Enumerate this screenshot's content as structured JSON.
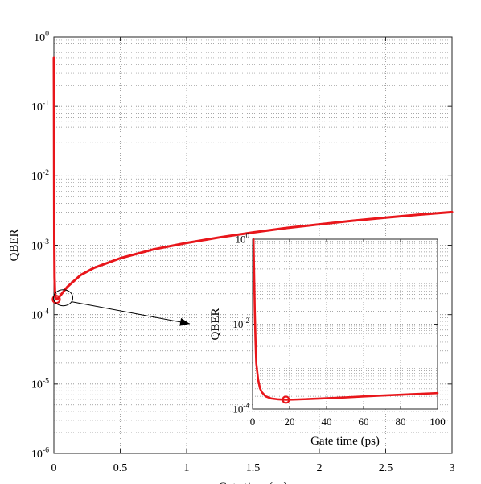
{
  "chart_data": [
    {
      "type": "line",
      "title": "",
      "xlabel": "Gate time (ns)",
      "ylabel": "QBER",
      "xlim": [
        0,
        3
      ],
      "ylim": [
        1e-06,
        1
      ],
      "yscale": "log",
      "grid": true,
      "x_ticks": [
        0,
        0.5,
        1,
        1.5,
        2,
        2.5,
        3
      ],
      "x_tick_labels": [
        "0",
        "0.5",
        "1",
        "1.5",
        "2",
        "2.5",
        "3"
      ],
      "y_ticks": [
        1e-06,
        1e-05,
        0.0001,
        0.001,
        0.01,
        0.1,
        1
      ],
      "y_tick_bases": [
        "10",
        "10",
        "10",
        "10",
        "10",
        "10",
        "10"
      ],
      "y_tick_exponents": [
        "-6",
        "-5",
        "-4",
        "-3",
        "-2",
        "-1",
        "0"
      ],
      "series": [
        {
          "color": "#e8161b",
          "x": [
            0.0,
            0.001,
            0.002,
            0.003,
            0.005,
            0.008,
            0.012,
            0.018,
            0.025,
            0.05,
            0.1,
            0.2,
            0.3,
            0.5,
            0.75,
            1.0,
            1.25,
            1.5,
            1.75,
            2.0,
            2.25,
            2.5,
            2.75,
            3.0
          ],
          "y": [
            0.5,
            0.12,
            0.01,
            0.0012,
            0.00035,
            0.00022,
            0.00018,
            0.000168,
            0.000166,
            0.00019,
            0.00025,
            0.00037,
            0.00047,
            0.00065,
            0.00087,
            0.00108,
            0.0013,
            0.00153,
            0.00177,
            0.002,
            0.00225,
            0.0025,
            0.00275,
            0.003
          ]
        }
      ],
      "marker": {
        "x": 0.018,
        "y": 0.000166,
        "color": "#e8161b"
      },
      "annotation": {
        "type": "ellipse-with-arrow",
        "points_to": "inset"
      }
    },
    {
      "type": "line",
      "role": "inset",
      "title": "",
      "xlabel": "Gate time (ps)",
      "ylabel": "QBER",
      "xlim": [
        0,
        100
      ],
      "ylim": [
        0.0001,
        1
      ],
      "yscale": "log",
      "grid": true,
      "x_ticks": [
        0,
        20,
        40,
        60,
        80,
        100
      ],
      "x_tick_labels": [
        "0",
        "20",
        "40",
        "60",
        "80",
        "100"
      ],
      "y_ticks": [
        0.0001,
        0.01,
        1
      ],
      "y_tick_bases": [
        "10",
        "10",
        "10"
      ],
      "y_tick_exponents": [
        "-4",
        "-2",
        "0"
      ],
      "series": [
        {
          "color": "#e8161b",
          "x": [
            0.5,
            0.8,
            1.2,
            1.6,
            2.0,
            3.0,
            4.0,
            5.0,
            7.0,
            10.0,
            14.0,
            18.0,
            22.0,
            30.0,
            40.0,
            50.0,
            60.0,
            70.0,
            80.0,
            90.0,
            100.0
          ],
          "y": [
            1.0,
            0.2,
            0.02,
            0.004,
            0.0012,
            0.0005,
            0.00031,
            0.00025,
            0.0002,
            0.000178,
            0.000169,
            0.000166,
            0.000167,
            0.000172,
            0.00018,
            0.000188,
            0.000198,
            0.000208,
            0.000218,
            0.000228,
            0.000238
          ]
        }
      ],
      "marker": {
        "x": 18,
        "y": 0.000166,
        "color": "#e8161b"
      }
    }
  ]
}
